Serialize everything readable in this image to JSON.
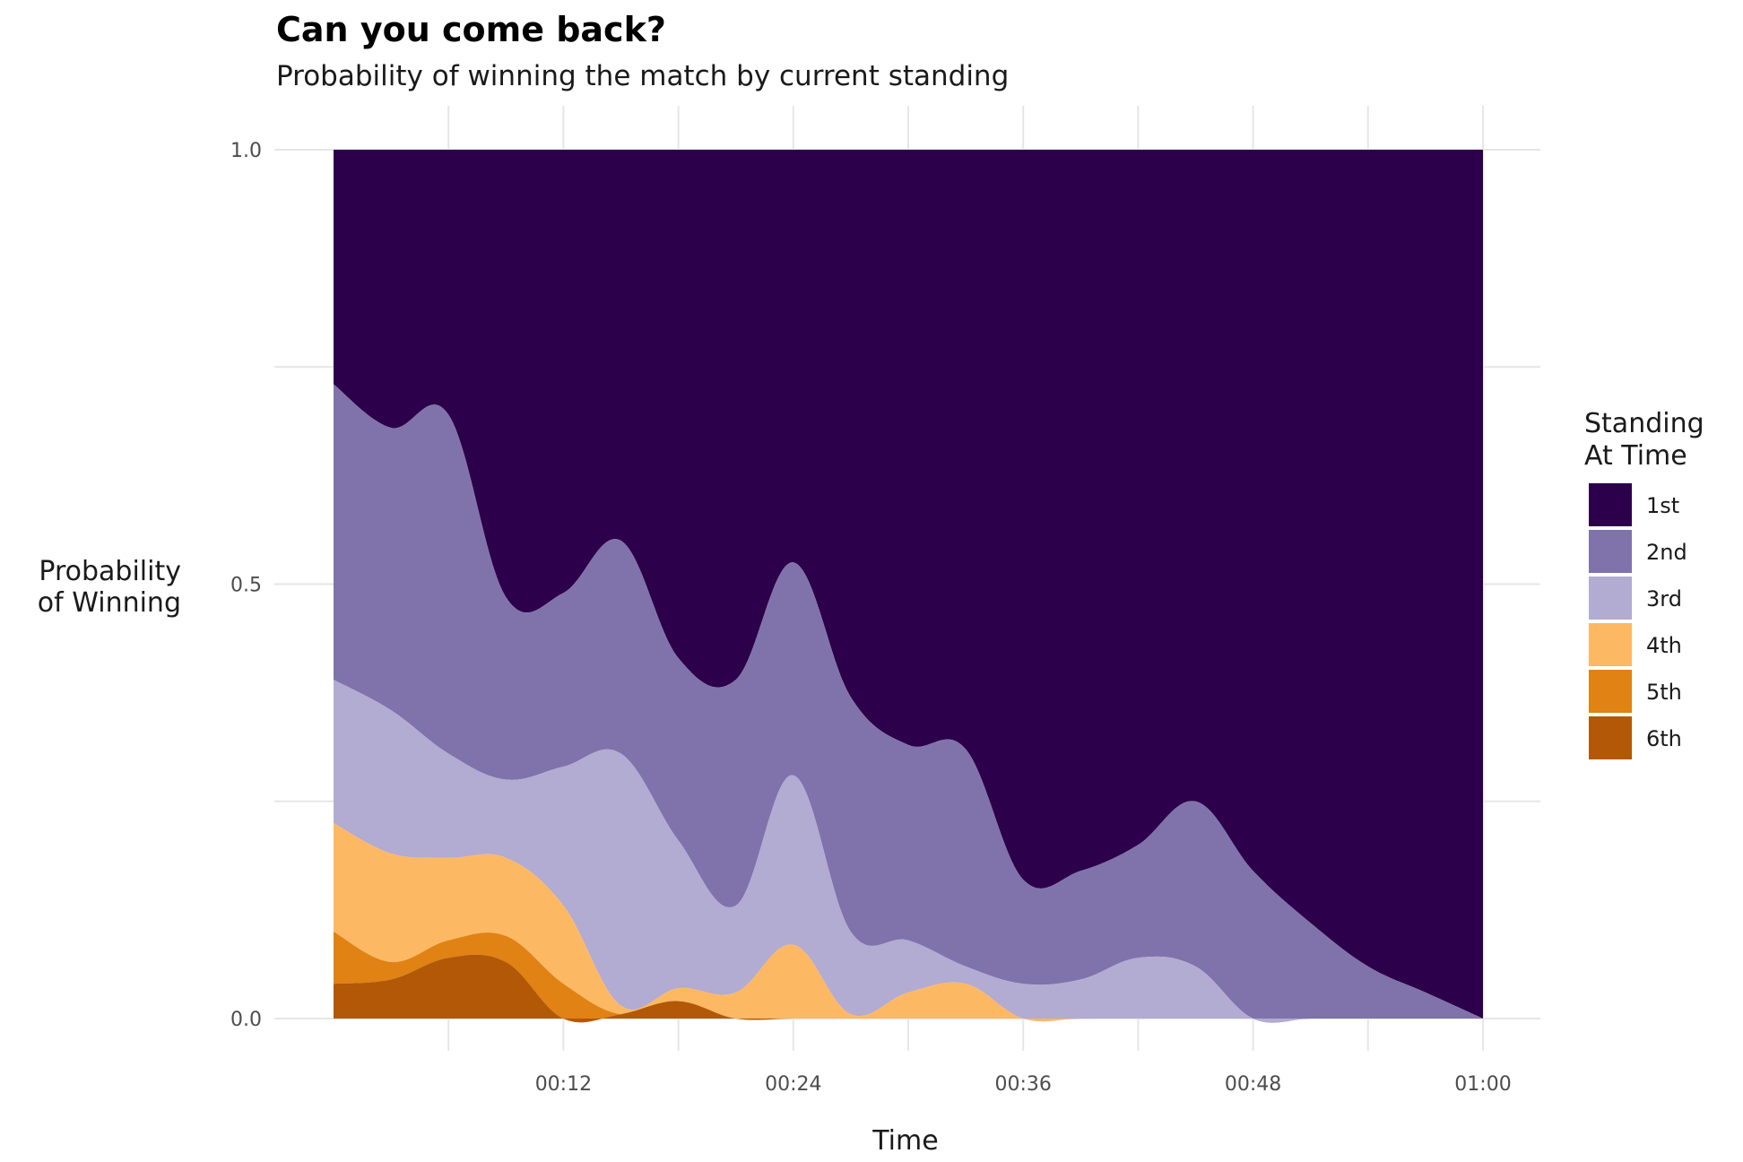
{
  "chart_data": {
    "type": "area",
    "stacked": "fill",
    "title": "Can you come back?",
    "subtitle": "Probability of winning the match by current standing",
    "xlabel": "Time",
    "ylabel_lines": [
      "Probability",
      "of Winning"
    ],
    "xlim": [
      0,
      60
    ],
    "ylim": [
      0,
      1
    ],
    "x_ticks": [
      {
        "value": 12,
        "label": "00:12"
      },
      {
        "value": 24,
        "label": "00:24"
      },
      {
        "value": 36,
        "label": "00:36"
      },
      {
        "value": 48,
        "label": "00:48"
      },
      {
        "value": 60,
        "label": "01:00"
      }
    ],
    "y_ticks": [
      {
        "value": 0,
        "label": "0.0"
      },
      {
        "value": 0.5,
        "label": "0.5"
      },
      {
        "value": 1,
        "label": "1.0"
      }
    ],
    "x_minor_ticks": [
      6,
      18,
      30,
      42,
      54
    ],
    "y_minor_ticks": [
      0.25,
      0.75
    ],
    "grid": true,
    "legend": {
      "title_lines": [
        "Standing",
        "At Time"
      ],
      "position": "right"
    },
    "x": [
      0,
      3,
      6,
      9,
      12,
      15,
      18,
      21,
      24,
      27,
      30,
      33,
      36,
      39,
      42,
      45,
      48,
      51,
      54,
      57,
      60
    ],
    "series": [
      {
        "name": "6th",
        "color": "#B35806",
        "values": [
          0.04,
          0.045,
          0.07,
          0.065,
          0.0,
          0.005,
          0.02,
          0.0,
          0.0,
          0.0,
          0.0,
          0.0,
          0.0,
          0.0,
          0.0,
          0.0,
          0.0,
          0.0,
          0.0,
          0.0,
          0.0
        ]
      },
      {
        "name": "5th",
        "color": "#E08214",
        "values": [
          0.06,
          0.02,
          0.02,
          0.03,
          0.04,
          0.0,
          0.0,
          0.0,
          0.0,
          0.0,
          0.0,
          0.0,
          0.0,
          0.0,
          0.0,
          0.0,
          0.0,
          0.0,
          0.0,
          0.0,
          0.0
        ]
      },
      {
        "name": "4th",
        "color": "#FDB863",
        "values": [
          0.125,
          0.125,
          0.095,
          0.09,
          0.09,
          0.01,
          0.015,
          0.03,
          0.085,
          0.005,
          0.03,
          0.04,
          0.0,
          0.0,
          0.0,
          0.0,
          0.0,
          0.0,
          0.0,
          0.0,
          0.0
        ]
      },
      {
        "name": "3rd",
        "color": "#B2ABD2",
        "values": [
          0.165,
          0.165,
          0.12,
          0.09,
          0.16,
          0.29,
          0.17,
          0.1,
          0.195,
          0.095,
          0.06,
          0.02,
          0.04,
          0.045,
          0.07,
          0.06,
          0.0,
          0.0,
          0.0,
          0.0,
          0.0
        ]
      },
      {
        "name": "2nd",
        "color": "#8073AC",
        "values": [
          0.34,
          0.325,
          0.39,
          0.21,
          0.2,
          0.245,
          0.21,
          0.26,
          0.245,
          0.27,
          0.225,
          0.25,
          0.12,
          0.125,
          0.13,
          0.19,
          0.17,
          0.11,
          0.06,
          0.03,
          0.0
        ]
      },
      {
        "name": "1st",
        "color": "#2D004B",
        "values": [
          0.27,
          0.32,
          0.305,
          0.515,
          0.51,
          0.45,
          0.585,
          0.61,
          0.475,
          0.63,
          0.685,
          0.69,
          0.84,
          0.83,
          0.8,
          0.75,
          0.83,
          0.89,
          0.94,
          0.97,
          1.0
        ]
      }
    ]
  }
}
